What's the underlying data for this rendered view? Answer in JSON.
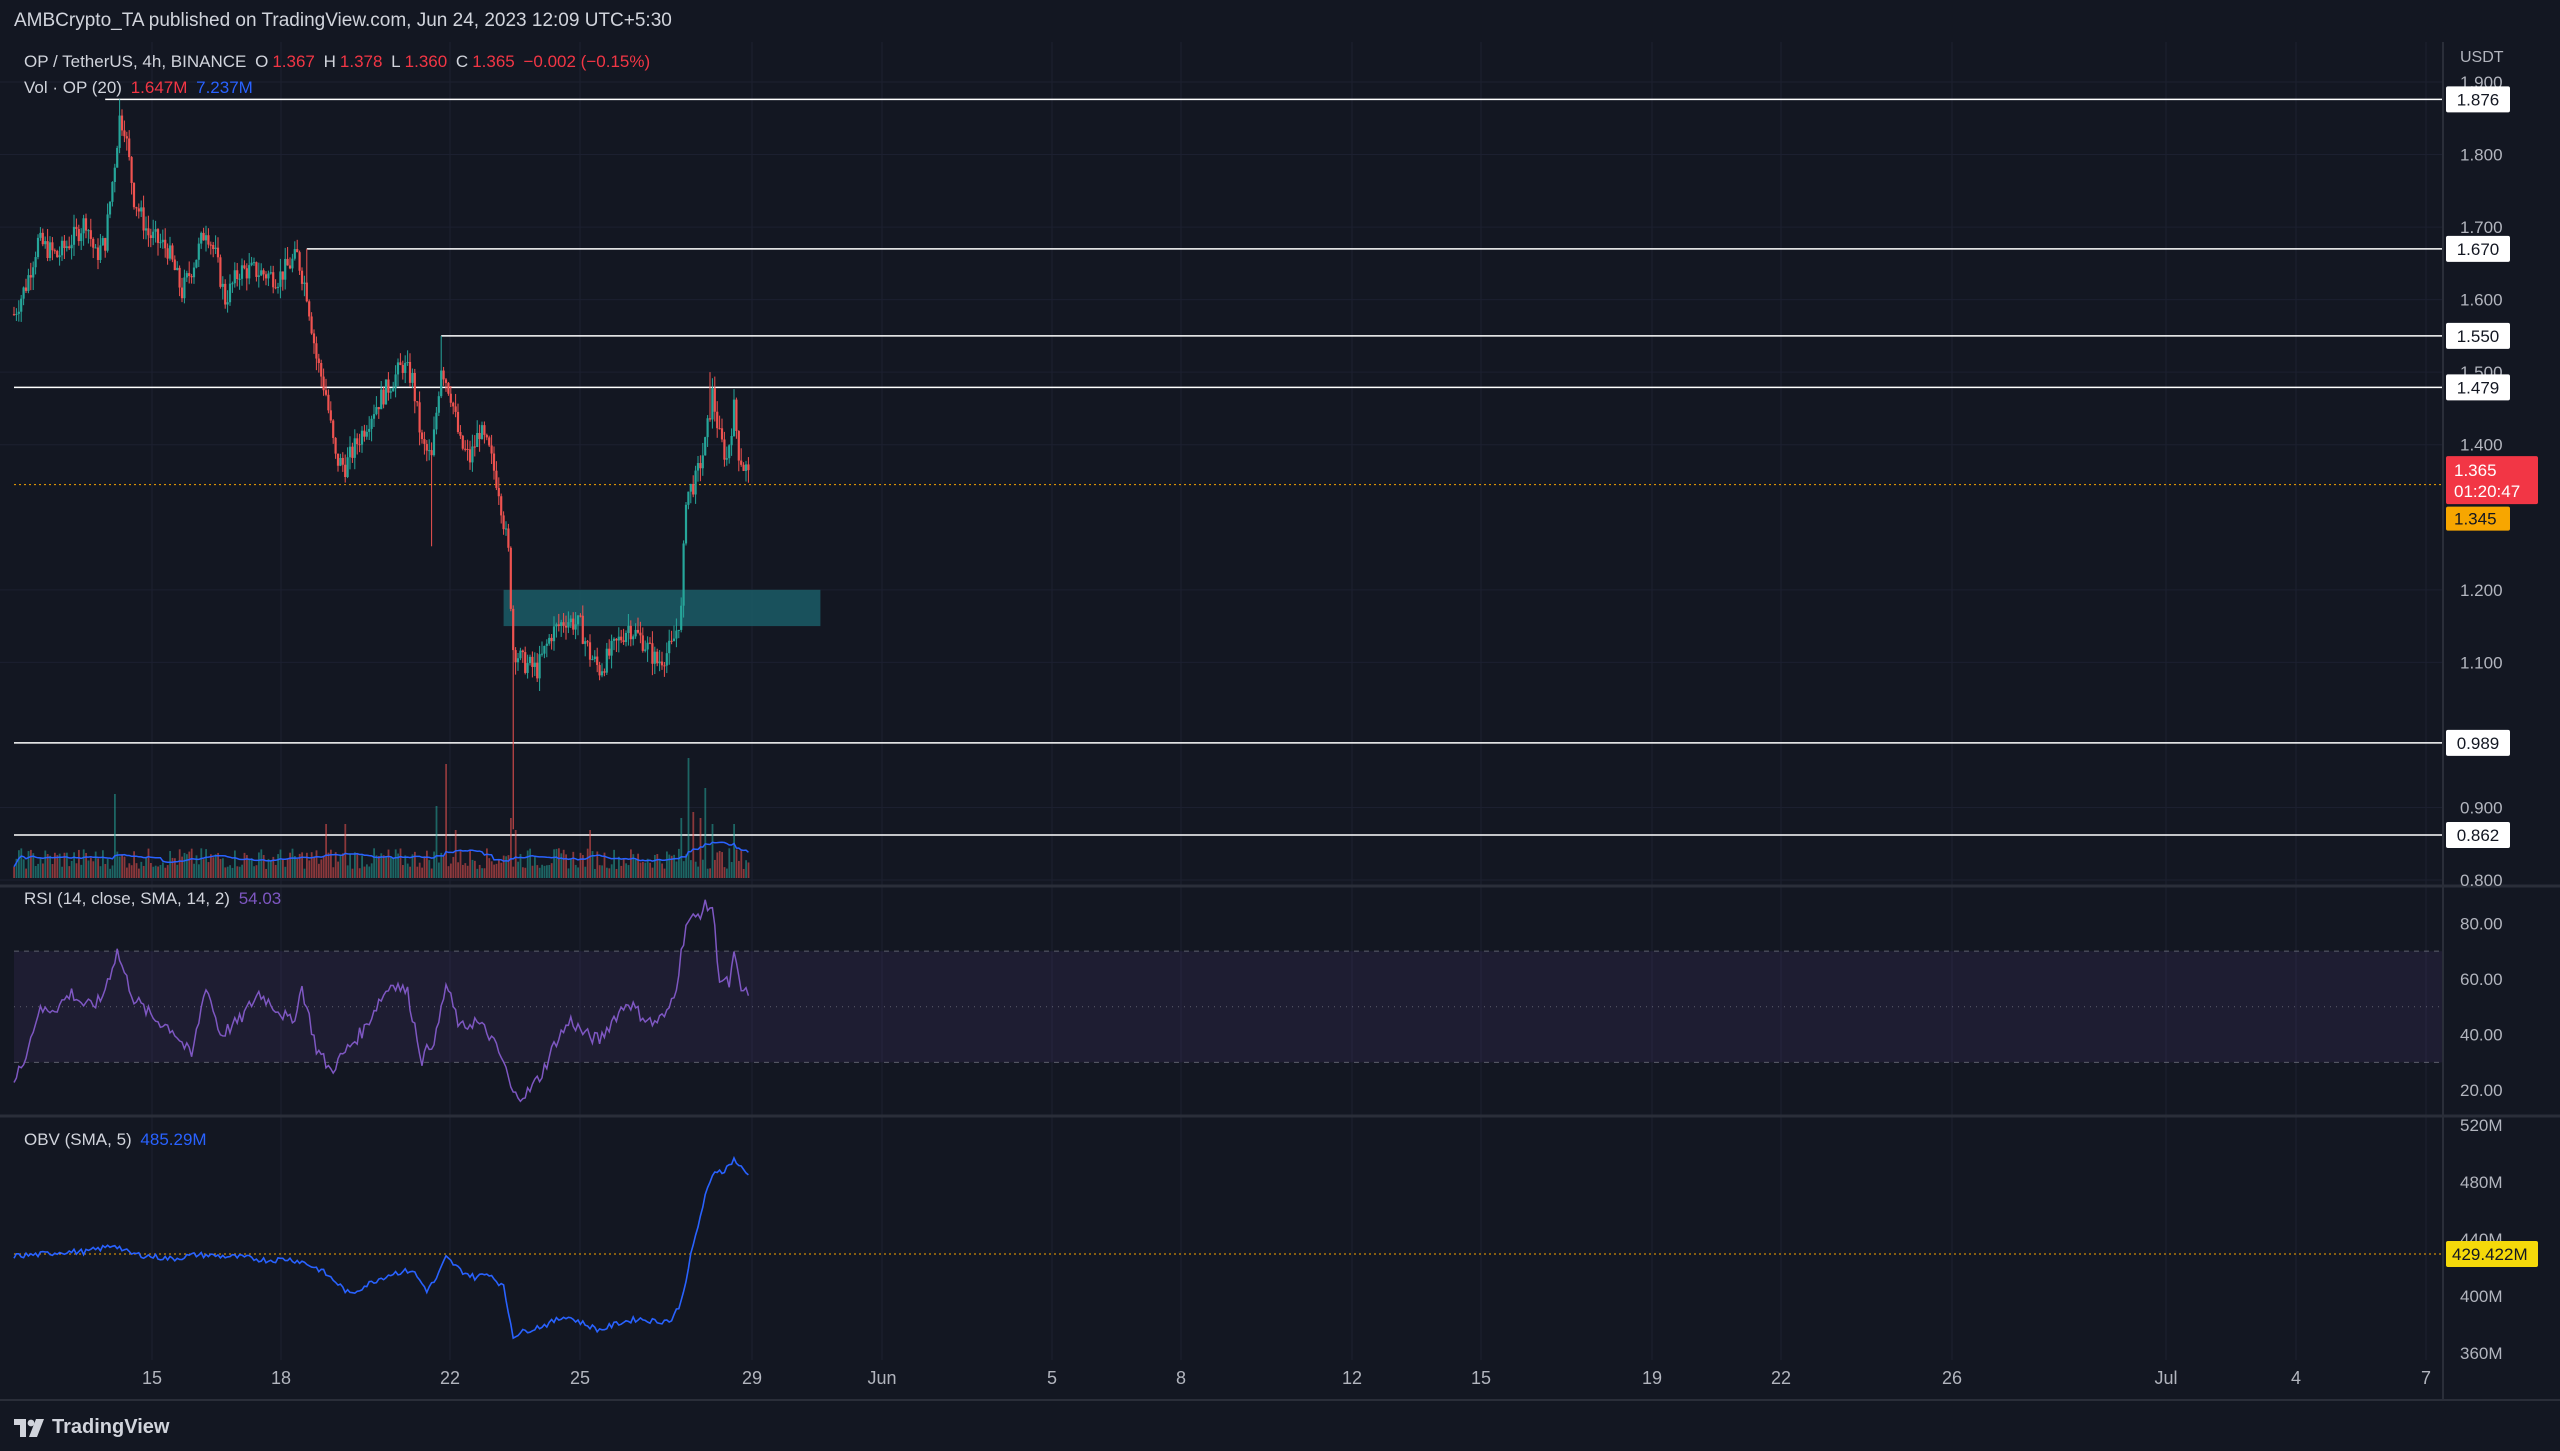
{
  "header": {
    "publish_line": "AMBCrypto_TA published on TradingView.com, Jun 24, 2023 12:09 UTC+5:30"
  },
  "legend": {
    "symbol": "OP / TetherUS, 4h, BINANCE",
    "o_label": "O",
    "o_value": "1.367",
    "h_label": "H",
    "h_value": "1.378",
    "l_label": "L",
    "l_value": "1.360",
    "c_label": "C",
    "c_value": "1.365",
    "change": "−0.002 (−0.15%)",
    "vol_label": "Vol · OP (20)",
    "vol_value": "1.647M",
    "vol_ma_value": "7.237M",
    "rsi_label": "RSI (14, close, SMA, 14, 2)",
    "rsi_value": "54.03",
    "obv_label": "OBV (SMA, 5)",
    "obv_value": "485.29M"
  },
  "footer": {
    "brand": "TradingView"
  },
  "colors": {
    "background": "#131722",
    "up": "#26a69a",
    "down": "#ef5350",
    "rsi": "#7e57c2",
    "obv": "#2962ff",
    "zone": "#1b5c66",
    "level_line": "#ffffff",
    "price_label_bg": "#f23645",
    "prev_close_bg": "#f7a600",
    "obv_label_bg": "#f5d90a"
  },
  "chart_data": [
    {
      "type": "candlestick",
      "title": "OP / TetherUS, 4h, BINANCE",
      "unit_label": "USDT",
      "x_tick_labels": [
        "15",
        "18",
        "22",
        "25",
        "29",
        "Jun",
        "5",
        "8",
        "12",
        "15",
        "19",
        "22",
        "26",
        "Jul",
        "4",
        "7"
      ],
      "y_ticks": [
        "0.800",
        "0.900",
        "1.100",
        "1.200",
        "1.400",
        "1.500",
        "1.600",
        "1.700",
        "1.800",
        "1.900"
      ],
      "ylim": [
        0.8,
        1.92
      ],
      "close_path": [
        {
          "t": 0,
          "c": 1.58
        },
        {
          "t": 5,
          "c": 1.62
        },
        {
          "t": 10,
          "c": 1.68
        },
        {
          "t": 18,
          "c": 1.66
        },
        {
          "t": 26,
          "c": 1.69
        },
        {
          "t": 30,
          "c": 1.71
        },
        {
          "t": 34,
          "c": 1.66
        },
        {
          "t": 38,
          "c": 1.68
        },
        {
          "t": 42,
          "c": 1.79
        },
        {
          "t": 44,
          "c": 1.85
        },
        {
          "t": 46,
          "c": 1.84
        },
        {
          "t": 50,
          "c": 1.74
        },
        {
          "t": 56,
          "c": 1.69
        },
        {
          "t": 64,
          "c": 1.67
        },
        {
          "t": 70,
          "c": 1.61
        },
        {
          "t": 76,
          "c": 1.66
        },
        {
          "t": 80,
          "c": 1.7
        },
        {
          "t": 84,
          "c": 1.66
        },
        {
          "t": 88,
          "c": 1.6
        },
        {
          "t": 94,
          "c": 1.64
        },
        {
          "t": 100,
          "c": 1.64
        },
        {
          "t": 110,
          "c": 1.63
        },
        {
          "t": 118,
          "c": 1.66
        },
        {
          "t": 122,
          "c": 1.61
        },
        {
          "t": 126,
          "c": 1.52
        },
        {
          "t": 130,
          "c": 1.47
        },
        {
          "t": 134,
          "c": 1.38
        },
        {
          "t": 138,
          "c": 1.37
        },
        {
          "t": 144,
          "c": 1.41
        },
        {
          "t": 150,
          "c": 1.45
        },
        {
          "t": 156,
          "c": 1.48
        },
        {
          "t": 162,
          "c": 1.51
        },
        {
          "t": 166,
          "c": 1.49
        },
        {
          "t": 170,
          "c": 1.4
        },
        {
          "t": 174,
          "c": 1.38
        },
        {
          "t": 178,
          "c": 1.51
        },
        {
          "t": 182,
          "c": 1.47
        },
        {
          "t": 186,
          "c": 1.4
        },
        {
          "t": 190,
          "c": 1.38
        },
        {
          "t": 194,
          "c": 1.42
        },
        {
          "t": 198,
          "c": 1.39
        },
        {
          "t": 202,
          "c": 1.34
        },
        {
          "t": 206,
          "c": 1.25
        },
        {
          "t": 208,
          "c": 1.12
        },
        {
          "t": 212,
          "c": 1.1
        },
        {
          "t": 218,
          "c": 1.09
        },
        {
          "t": 224,
          "c": 1.14
        },
        {
          "t": 230,
          "c": 1.16
        },
        {
          "t": 236,
          "c": 1.15
        },
        {
          "t": 240,
          "c": 1.11
        },
        {
          "t": 244,
          "c": 1.09
        },
        {
          "t": 250,
          "c": 1.12
        },
        {
          "t": 256,
          "c": 1.15
        },
        {
          "t": 262,
          "c": 1.13
        },
        {
          "t": 268,
          "c": 1.1
        },
        {
          "t": 274,
          "c": 1.12
        },
        {
          "t": 278,
          "c": 1.17
        },
        {
          "t": 280,
          "c": 1.33
        },
        {
          "t": 284,
          "c": 1.35
        },
        {
          "t": 288,
          "c": 1.4
        },
        {
          "t": 291,
          "c": 1.47
        },
        {
          "t": 294,
          "c": 1.41
        },
        {
          "t": 297,
          "c": 1.38
        },
        {
          "t": 300,
          "c": 1.45
        },
        {
          "t": 302,
          "c": 1.39
        },
        {
          "t": 304,
          "c": 1.37
        },
        {
          "t": 306,
          "c": 1.365
        }
      ],
      "last_candle_index": 306,
      "horizontal_levels": [
        {
          "value": 1.876,
          "label": "1.876",
          "from_t": 38
        },
        {
          "value": 1.67,
          "label": "1.670",
          "from_t": 122
        },
        {
          "value": 1.55,
          "label": "1.550",
          "from_t": 178
        },
        {
          "value": 1.479,
          "label": "1.479",
          "from_t": 0
        },
        {
          "value": 0.989,
          "label": "0.989",
          "from_t": 0
        },
        {
          "value": 0.862,
          "label": "0.862",
          "from_t": 0
        }
      ],
      "zone": {
        "from_t": 204,
        "to_t": 336,
        "low": 1.15,
        "high": 1.2
      },
      "previous_close_line": {
        "value": 1.345,
        "label": "1.345"
      },
      "last_price": {
        "value": 1.365,
        "label": "1.365",
        "countdown": "01:20:47"
      },
      "volume": {
        "label": "Vol · OP (20)",
        "spikes": [
          {
            "t": 42,
            "v": 14
          },
          {
            "t": 130,
            "v": 9
          },
          {
            "t": 138,
            "v": 9
          },
          {
            "t": 176,
            "v": 12
          },
          {
            "t": 180,
            "v": 19
          },
          {
            "t": 184,
            "v": 8
          },
          {
            "t": 207,
            "v": 10
          },
          {
            "t": 209,
            "v": 8
          },
          {
            "t": 240,
            "v": 8
          },
          {
            "t": 278,
            "v": 10
          },
          {
            "t": 281,
            "v": 20
          },
          {
            "t": 283,
            "v": 11
          },
          {
            "t": 286,
            "v": 10
          },
          {
            "t": 288,
            "v": 15
          },
          {
            "t": 291,
            "v": 9
          },
          {
            "t": 300,
            "v": 9
          }
        ]
      }
    },
    {
      "type": "line",
      "title": "RSI (14, close, SMA, 14, 2)",
      "y_ticks": [
        "20.00",
        "40.00",
        "60.00",
        "80.00"
      ],
      "ylim": [
        10,
        92
      ],
      "band": [
        30,
        70
      ],
      "series": [
        {
          "name": "RSI",
          "points": [
            {
              "t": 0,
              "v": 22
            },
            {
              "t": 6,
              "v": 36
            },
            {
              "t": 10,
              "v": 48
            },
            {
              "t": 18,
              "v": 50
            },
            {
              "t": 24,
              "v": 55
            },
            {
              "t": 30,
              "v": 50
            },
            {
              "t": 36,
              "v": 52
            },
            {
              "t": 40,
              "v": 62
            },
            {
              "t": 43,
              "v": 70
            },
            {
              "t": 46,
              "v": 62
            },
            {
              "t": 50,
              "v": 53
            },
            {
              "t": 58,
              "v": 46
            },
            {
              "t": 66,
              "v": 42
            },
            {
              "t": 74,
              "v": 32
            },
            {
              "t": 80,
              "v": 58
            },
            {
              "t": 86,
              "v": 40
            },
            {
              "t": 94,
              "v": 45
            },
            {
              "t": 102,
              "v": 55
            },
            {
              "t": 110,
              "v": 49
            },
            {
              "t": 116,
              "v": 44
            },
            {
              "t": 120,
              "v": 57
            },
            {
              "t": 126,
              "v": 35
            },
            {
              "t": 132,
              "v": 27
            },
            {
              "t": 140,
              "v": 36
            },
            {
              "t": 146,
              "v": 42
            },
            {
              "t": 152,
              "v": 52
            },
            {
              "t": 158,
              "v": 59
            },
            {
              "t": 164,
              "v": 55
            },
            {
              "t": 170,
              "v": 31
            },
            {
              "t": 176,
              "v": 40
            },
            {
              "t": 180,
              "v": 58
            },
            {
              "t": 186,
              "v": 42
            },
            {
              "t": 192,
              "v": 45
            },
            {
              "t": 198,
              "v": 40
            },
            {
              "t": 204,
              "v": 30
            },
            {
              "t": 208,
              "v": 18
            },
            {
              "t": 214,
              "v": 19
            },
            {
              "t": 220,
              "v": 26
            },
            {
              "t": 226,
              "v": 38
            },
            {
              "t": 232,
              "v": 45
            },
            {
              "t": 238,
              "v": 40
            },
            {
              "t": 244,
              "v": 38
            },
            {
              "t": 250,
              "v": 46
            },
            {
              "t": 256,
              "v": 52
            },
            {
              "t": 260,
              "v": 48
            },
            {
              "t": 266,
              "v": 44
            },
            {
              "t": 272,
              "v": 47
            },
            {
              "t": 276,
              "v": 58
            },
            {
              "t": 280,
              "v": 80
            },
            {
              "t": 284,
              "v": 82
            },
            {
              "t": 288,
              "v": 86
            },
            {
              "t": 291,
              "v": 86
            },
            {
              "t": 294,
              "v": 60
            },
            {
              "t": 298,
              "v": 58
            },
            {
              "t": 300,
              "v": 68
            },
            {
              "t": 303,
              "v": 56
            },
            {
              "t": 306,
              "v": 54
            }
          ]
        }
      ]
    },
    {
      "type": "line",
      "title": "OBV (SMA, 5)",
      "y_ticks": [
        "360M",
        "400M",
        "440M",
        "480M",
        "520M"
      ],
      "ylim": [
        355,
        525
      ],
      "reference_line": {
        "value": 429.422,
        "label": "429.422M"
      },
      "series": [
        {
          "name": "OBV",
          "points": [
            {
              "t": 0,
              "v": 428
            },
            {
              "t": 10,
              "v": 429
            },
            {
              "t": 20,
              "v": 431
            },
            {
              "t": 30,
              "v": 431
            },
            {
              "t": 38,
              "v": 434
            },
            {
              "t": 42,
              "v": 436
            },
            {
              "t": 48,
              "v": 430
            },
            {
              "t": 56,
              "v": 428
            },
            {
              "t": 66,
              "v": 426
            },
            {
              "t": 76,
              "v": 429
            },
            {
              "t": 86,
              "v": 428
            },
            {
              "t": 96,
              "v": 427
            },
            {
              "t": 106,
              "v": 425
            },
            {
              "t": 114,
              "v": 426
            },
            {
              "t": 120,
              "v": 424
            },
            {
              "t": 128,
              "v": 418
            },
            {
              "t": 134,
              "v": 410
            },
            {
              "t": 140,
              "v": 401
            },
            {
              "t": 146,
              "v": 407
            },
            {
              "t": 152,
              "v": 412
            },
            {
              "t": 158,
              "v": 416
            },
            {
              "t": 166,
              "v": 418
            },
            {
              "t": 172,
              "v": 404
            },
            {
              "t": 176,
              "v": 412
            },
            {
              "t": 180,
              "v": 427
            },
            {
              "t": 186,
              "v": 418
            },
            {
              "t": 192,
              "v": 413
            },
            {
              "t": 198,
              "v": 416
            },
            {
              "t": 204,
              "v": 406
            },
            {
              "t": 208,
              "v": 372
            },
            {
              "t": 214,
              "v": 376
            },
            {
              "t": 222,
              "v": 380
            },
            {
              "t": 230,
              "v": 386
            },
            {
              "t": 238,
              "v": 380
            },
            {
              "t": 244,
              "v": 376
            },
            {
              "t": 252,
              "v": 381
            },
            {
              "t": 260,
              "v": 384
            },
            {
              "t": 268,
              "v": 382
            },
            {
              "t": 274,
              "v": 383
            },
            {
              "t": 278,
              "v": 396
            },
            {
              "t": 282,
              "v": 428
            },
            {
              "t": 288,
              "v": 470
            },
            {
              "t": 292,
              "v": 488
            },
            {
              "t": 296,
              "v": 488
            },
            {
              "t": 300,
              "v": 496
            },
            {
              "t": 304,
              "v": 488
            },
            {
              "t": 306,
              "v": 485
            }
          ]
        }
      ]
    }
  ]
}
